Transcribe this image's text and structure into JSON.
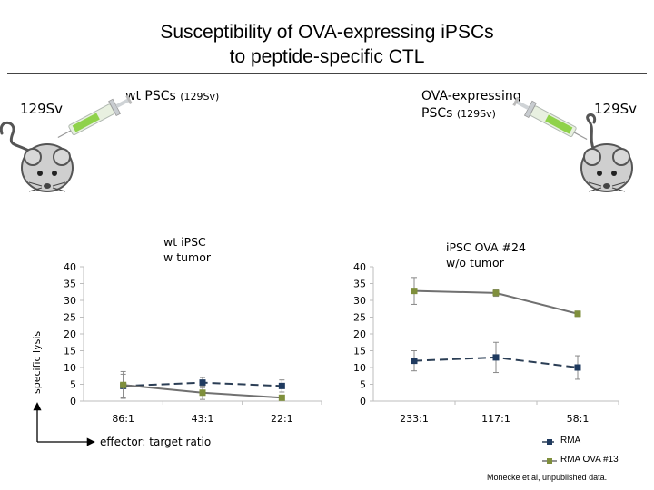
{
  "header": {
    "title_line1": "Susceptibility of OVA-expressing iPSCs",
    "title_line2": "to peptide-specific CTL"
  },
  "schematic": {
    "left_strain": "129Sv",
    "right_strain": "129Sv",
    "left_injection_main": "wt PSCs",
    "left_injection_sub": "(129Sv)",
    "right_injection_line1": "OVA-expressing",
    "right_injection_main": "PSCs",
    "right_injection_sub": "(129Sv)",
    "syringe_icon": "syringe-icon",
    "mouse_icon": "mouse-icon"
  },
  "colors": {
    "rma": "#1f3a5f",
    "rma_ova": "#7f8f3c",
    "rma_line": "#2b3e55",
    "rma_ova_line": "#707070"
  },
  "axis": {
    "ylabel": "specific lysis",
    "xlabel": "effector: target ratio"
  },
  "legend": {
    "rma": "RMA",
    "rma_ova": "RMA OVA #13"
  },
  "credit": "Monecke et al, unpublished data.",
  "chart_data": [
    {
      "type": "line",
      "title_line1": "wt iPSC",
      "title_line2": "w tumor",
      "categories": [
        "86:1",
        "43:1",
        "22:1"
      ],
      "ylim": [
        0,
        40
      ],
      "yticks": [
        "0",
        "5",
        "10",
        "15",
        "20",
        "25",
        "30",
        "35",
        "40"
      ],
      "series": [
        {
          "name": "RMA",
          "values": [
            4.5,
            5.5,
            4.5
          ],
          "err": [
            3.5,
            1.5,
            1.8
          ],
          "style": "dashed"
        },
        {
          "name": "RMA OVA #13",
          "values": [
            4.8,
            2.5,
            1.0
          ],
          "err": [
            4.0,
            2.0,
            0.5
          ],
          "style": "solid"
        }
      ]
    },
    {
      "type": "line",
      "title_line1": "iPSC OVA #24",
      "title_line2": "w/o tumor",
      "categories": [
        "233:1",
        "117:1",
        "58:1"
      ],
      "ylim": [
        0,
        40
      ],
      "yticks": [
        "0",
        "5",
        "10",
        "15",
        "20",
        "25",
        "30",
        "35",
        "40"
      ],
      "series": [
        {
          "name": "RMA",
          "values": [
            12,
            13,
            10
          ],
          "err": [
            3,
            4.5,
            3.5
          ],
          "style": "dashed"
        },
        {
          "name": "RMA OVA #13",
          "values": [
            32.8,
            32.2,
            26
          ],
          "err": [
            4,
            1,
            0.8
          ],
          "style": "solid"
        }
      ]
    }
  ]
}
